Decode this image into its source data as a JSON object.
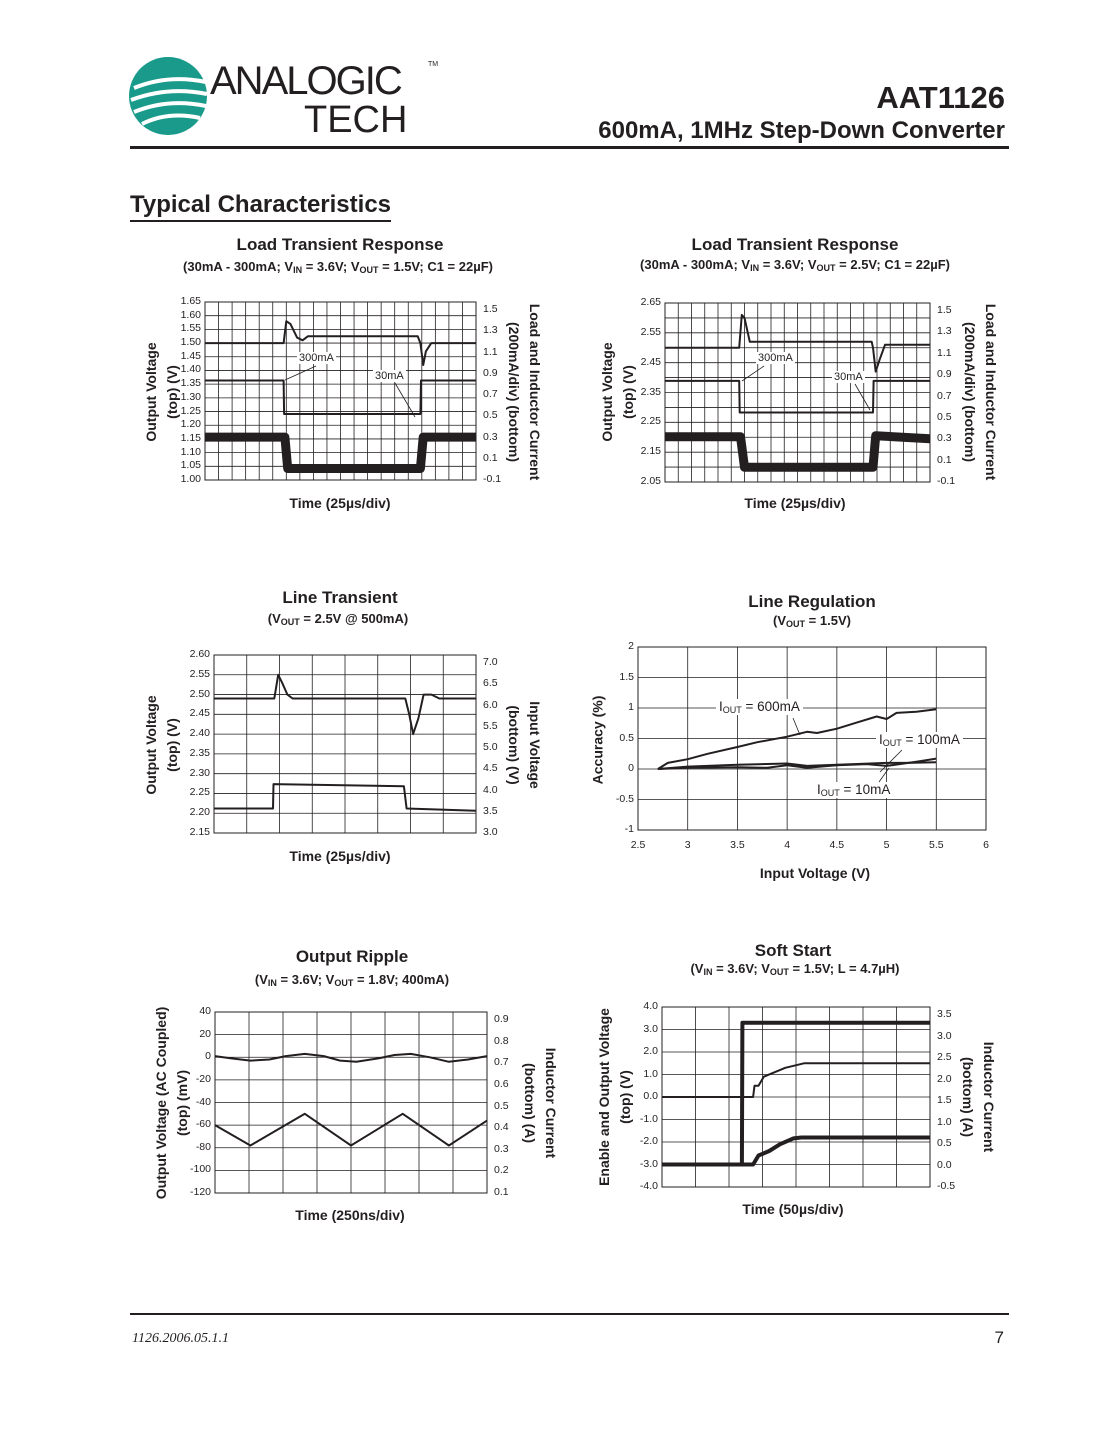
{
  "header": {
    "logo_text_top": "ANALOGIC",
    "logo_text_bottom": "TECH",
    "logo_tm": "TM",
    "part_number": "AAT1126",
    "subtitle": "600mA, 1MHz Step-Down Converter",
    "brand_color": "#1a9a8a"
  },
  "section_title": "Typical Characteristics",
  "footer": {
    "doc_id": "1126.2006.05.1.1",
    "page": "7"
  },
  "chart_data": [
    {
      "type": "line",
      "title": "Load Transient Response",
      "subtitle": [
        {
          "t": "(30mA - 300mA; V"
        },
        {
          "sub": "IN"
        },
        {
          "t": " = 3.6V; V"
        },
        {
          "sub": "OUT"
        },
        {
          "t": " = 1.5V; C1 = 22µF)"
        }
      ],
      "xlabel": "Time (25µs/div)",
      "ylabel": [
        "Output Voltage",
        "(top) (V)"
      ],
      "ylabel_right": [
        "Load and Inductor Current",
        "(200mA/div) (bottom)"
      ],
      "x_unit": "div",
      "xlim": [
        0,
        10
      ],
      "ylim": [
        1.0,
        1.65
      ],
      "ylim_right": [
        -0.1,
        1.6
      ],
      "yticks": [
        "1.65",
        "1.60",
        "1.55",
        "1.50",
        "1.45",
        "1.40",
        "1.35",
        "1.30",
        "1.25",
        "1.20",
        "1.15",
        "1.10",
        "1.05",
        "1.00"
      ],
      "yticks_right": [
        "1.5",
        "1.3",
        "1.1",
        "0.9",
        "0.7",
        "0.5",
        "0.3",
        "0.1",
        "-0.1"
      ],
      "grid": true,
      "annotations": [
        "300mA",
        "30mA"
      ],
      "series": [
        {
          "axis": "left",
          "x": [
            0,
            2.9,
            3.0,
            3.15,
            3.4,
            3.6,
            3.8,
            7.85,
            7.95,
            8.05,
            8.15,
            8.35,
            10
          ],
          "y": [
            1.5,
            1.5,
            1.58,
            1.57,
            1.52,
            1.51,
            1.525,
            1.525,
            1.5,
            1.42,
            1.47,
            1.5,
            1.5
          ]
        },
        {
          "axis": "right",
          "x": [
            0,
            2.9,
            2.92,
            7.95,
            7.97,
            10
          ],
          "y": [
            0.85,
            0.85,
            0.53,
            0.53,
            0.85,
            0.85
          ]
        },
        {
          "axis": "right",
          "noisy": true,
          "x": [
            0,
            2.95,
            3.05,
            7.95,
            8.05,
            10
          ],
          "y": [
            0.31,
            0.31,
            0.01,
            0.01,
            0.31,
            0.31
          ]
        }
      ]
    },
    {
      "type": "line",
      "title": "Load Transient Response",
      "subtitle": [
        {
          "t": "(30mA - 300mA; V"
        },
        {
          "sub": "IN"
        },
        {
          "t": " = 3.6V; V"
        },
        {
          "sub": "OUT"
        },
        {
          "t": " = 2.5V; C1 = 22µF)"
        }
      ],
      "xlabel": "Time (25µs/div)",
      "ylabel": [
        "Output Voltage",
        "(top) (V)"
      ],
      "ylabel_right": [
        "Load and Inductor Current",
        "(200mA/div) (bottom)"
      ],
      "x_unit": "div",
      "xlim": [
        0,
        10
      ],
      "ylim": [
        2.05,
        2.65
      ],
      "ylim_right": [
        -0.1,
        1.6
      ],
      "yticks": [
        "2.65",
        "2.55",
        "2.45",
        "2.35",
        "2.25",
        "2.15",
        "2.05"
      ],
      "yticks_right": [
        "1.5",
        "1.3",
        "1.1",
        "0.9",
        "0.7",
        "0.5",
        "0.3",
        "0.1",
        "-0.1"
      ],
      "grid": true,
      "annotations": [
        "300mA",
        "30mA"
      ],
      "series": [
        {
          "axis": "left",
          "x": [
            0,
            2.8,
            2.9,
            3.0,
            3.2,
            3.4,
            7.8,
            7.85,
            7.95,
            8.1,
            8.3,
            10
          ],
          "y": [
            2.5,
            2.5,
            2.61,
            2.6,
            2.52,
            2.52,
            2.52,
            2.5,
            2.42,
            2.46,
            2.51,
            2.51
          ]
        },
        {
          "axis": "right",
          "x": [
            0,
            2.8,
            2.82,
            7.85,
            7.87,
            10
          ],
          "y": [
            0.86,
            0.86,
            0.56,
            0.56,
            0.86,
            0.86
          ]
        },
        {
          "axis": "right",
          "noisy": true,
          "x": [
            0,
            2.85,
            3.0,
            7.85,
            7.95,
            10
          ],
          "y": [
            0.33,
            0.33,
            0.04,
            0.04,
            0.34,
            0.31
          ]
        }
      ]
    },
    {
      "type": "line",
      "title": "Line Transient",
      "subtitle": [
        {
          "t": "(V"
        },
        {
          "sub": "OUT"
        },
        {
          "t": " = 2.5V @ 500mA)"
        }
      ],
      "xlabel": "Time (25µs/div)",
      "ylabel": [
        "Output Voltage",
        "(top) (V)"
      ],
      "ylabel_right": [
        "Input Voltage",
        "(bottom) (V)"
      ],
      "x_unit": "div",
      "xlim": [
        0,
        10
      ],
      "ylim": [
        2.15,
        2.6
      ],
      "ylim_right": [
        3.0,
        7.0
      ],
      "yticks": [
        "2.60",
        "2.55",
        "2.50",
        "2.45",
        "2.40",
        "2.35",
        "2.30",
        "2.25",
        "2.20",
        "2.15"
      ],
      "yticks_right": [
        "7.0",
        "6.5",
        "6.0",
        "5.5",
        "5.0",
        "4.5",
        "4.0",
        "3.5",
        "3.0"
      ],
      "grid": true,
      "series": [
        {
          "axis": "left",
          "x": [
            0,
            2.3,
            2.45,
            2.6,
            2.8,
            3.0,
            3.3,
            7.3,
            7.45,
            7.6,
            7.8,
            8.0,
            8.3,
            8.6,
            10
          ],
          "y": [
            2.49,
            2.49,
            2.55,
            2.53,
            2.5,
            2.49,
            2.49,
            2.49,
            2.45,
            2.4,
            2.44,
            2.5,
            2.5,
            2.49,
            2.49
          ]
        },
        {
          "axis": "right",
          "x": [
            0,
            2.25,
            2.27,
            7.25,
            7.35,
            10
          ],
          "y": [
            3.55,
            3.55,
            4.1,
            4.05,
            3.55,
            3.5
          ]
        }
      ]
    },
    {
      "type": "line",
      "title": "Line Regulation",
      "subtitle": [
        {
          "t": "(V"
        },
        {
          "sub": "OUT"
        },
        {
          "t": " = 1.5V)"
        }
      ],
      "xlabel": "Input Voltage (V)",
      "ylabel": [
        "Accuracy (%)"
      ],
      "xlim": [
        2.5,
        6
      ],
      "ylim": [
        -1,
        2
      ],
      "xticks": [
        "2.5",
        "3",
        "3.5",
        "4",
        "4.5",
        "5",
        "5.5",
        "6"
      ],
      "yticks": [
        "2",
        "1.5",
        "1",
        "0.5",
        "0",
        "-0.5",
        "-1"
      ],
      "grid": true,
      "annotations": [
        [
          {
            "t": "I"
          },
          {
            "sub": "OUT"
          },
          {
            "t": " = 600mA"
          }
        ],
        [
          {
            "t": "I"
          },
          {
            "sub": "OUT"
          },
          {
            "t": " = 100mA"
          }
        ],
        [
          {
            "t": "I"
          },
          {
            "sub": "OUT"
          },
          {
            "t": " = 10mA"
          }
        ]
      ],
      "series": [
        {
          "name": "IOUT = 600mA",
          "x": [
            2.7,
            2.8,
            3.0,
            3.2,
            3.5,
            3.7,
            4.0,
            4.2,
            4.3,
            4.5,
            4.7,
            4.9,
            5.0,
            5.1,
            5.3,
            5.5
          ],
          "y": [
            0,
            0.1,
            0.16,
            0.25,
            0.36,
            0.44,
            0.53,
            0.61,
            0.59,
            0.66,
            0.76,
            0.86,
            0.82,
            0.92,
            0.94,
            0.98
          ]
        },
        {
          "name": "IOUT = 100mA",
          "x": [
            2.7,
            3.0,
            3.5,
            4.0,
            4.2,
            4.5,
            5.0,
            5.2,
            5.5
          ],
          "y": [
            0,
            0.04,
            0.07,
            0.09,
            0.05,
            0.07,
            0.1,
            0.1,
            0.11
          ]
        },
        {
          "name": "IOUT = 10mA",
          "x": [
            2.7,
            3.0,
            3.5,
            3.8,
            4.0,
            4.2,
            4.5,
            4.8,
            5.0,
            5.3,
            5.5
          ],
          "y": [
            0,
            0.02,
            0.03,
            0.02,
            0.06,
            0.02,
            0.06,
            0.08,
            0.05,
            0.12,
            0.17
          ]
        }
      ]
    },
    {
      "type": "line",
      "title": "Output Ripple",
      "subtitle": [
        {
          "t": "(V"
        },
        {
          "sub": "IN"
        },
        {
          "t": " = 3.6V; V"
        },
        {
          "sub": "OUT"
        },
        {
          "t": " = 1.8V; 400mA)"
        }
      ],
      "xlabel": "Time (250ns/div)",
      "ylabel": [
        "Output Voltage (AC Coupled)",
        "(top) (mV)"
      ],
      "ylabel_right": [
        "Inductor Current",
        "(bottom) (A)"
      ],
      "x_unit": "div",
      "xlim": [
        0,
        10
      ],
      "ylim": [
        -120,
        40
      ],
      "ylim_right": [
        0.1,
        0.9
      ],
      "yticks": [
        "40",
        "20",
        "0",
        "-20",
        "-40",
        "-60",
        "-80",
        "-100",
        "-120"
      ],
      "yticks_right": [
        "0.9",
        "0.8",
        "0.7",
        "0.6",
        "0.5",
        "0.4",
        "0.3",
        "0.2",
        "0.1"
      ],
      "grid": true,
      "series": [
        {
          "axis": "left",
          "x": [
            0,
            0.6,
            1.3,
            2.0,
            2.6,
            3.3,
            4.0,
            4.6,
            5.2,
            6.0,
            6.6,
            7.2,
            7.9,
            8.6,
            9.3,
            10
          ],
          "y": [
            1,
            -1,
            -3,
            -2,
            1,
            3,
            1,
            -3,
            -4,
            -1,
            2,
            3,
            0,
            -4,
            -2,
            1
          ]
        },
        {
          "axis": "right",
          "x": [
            0,
            1.3,
            3.3,
            5.0,
            6.9,
            8.6,
            10
          ],
          "y": [
            0.4,
            0.31,
            0.45,
            0.31,
            0.45,
            0.31,
            0.42
          ]
        }
      ]
    },
    {
      "type": "line",
      "title": "Soft Start",
      "subtitle": [
        {
          "t": "(V"
        },
        {
          "sub": "IN"
        },
        {
          "t": " = 3.6V; V"
        },
        {
          "sub": "OUT"
        },
        {
          "t": " = 1.5V; L = 4.7µH)"
        }
      ],
      "xlabel": "Time (50µs/div)",
      "ylabel": [
        "Enable and Output Voltage",
        "(top) (V)"
      ],
      "ylabel_right": [
        "Inductor Current",
        "(bottom) (A)"
      ],
      "x_unit": "div",
      "xlim": [
        0,
        10
      ],
      "ylim": [
        -4,
        4
      ],
      "ylim_right": [
        -0.5,
        3.5
      ],
      "yticks": [
        "4.0",
        "3.0",
        "2.0",
        "1.0",
        "0.0",
        "-1.0",
        "-2.0",
        "-3.0",
        "-4.0"
      ],
      "yticks_right": [
        "3.5",
        "3.0",
        "2.5",
        "2.0",
        "1.5",
        "1.0",
        "0.5",
        "0.0",
        "-0.5"
      ],
      "grid": true,
      "series": [
        {
          "axis": "left",
          "noisy": true,
          "x": [
            0,
            2.98,
            3.0,
            10
          ],
          "y": [
            -3.0,
            -3.0,
            3.3,
            3.3
          ]
        },
        {
          "axis": "left",
          "x": [
            0,
            3.4,
            3.45,
            3.6,
            3.8,
            4.6,
            5.3,
            10
          ],
          "y": [
            0,
            0,
            0.5,
            0.5,
            0.9,
            1.3,
            1.5,
            1.5
          ]
        },
        {
          "axis": "right",
          "noisy": true,
          "x": [
            0,
            3.4,
            3.6,
            4.0,
            4.4,
            4.9,
            5.2,
            10
          ],
          "y": [
            0,
            0,
            0.2,
            0.3,
            0.45,
            0.58,
            0.6,
            0.6
          ]
        }
      ]
    }
  ]
}
